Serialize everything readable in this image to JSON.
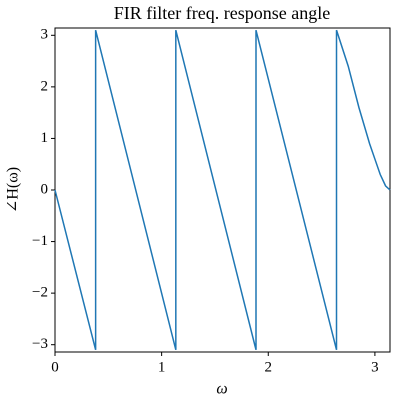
{
  "chart_data": {
    "type": "line",
    "title": "FIR filter freq. response angle",
    "x_label": "ω",
    "y_label": "∠H(ω)",
    "x": [
      0,
      0.381,
      0.381,
      1.133,
      1.133,
      1.885,
      1.885,
      2.64,
      2.64,
      2.75,
      2.85,
      2.95,
      3.0,
      3.05,
      3.1,
      3.1416
    ],
    "series": [
      {
        "color": "#1f77b4",
        "values": [
          0,
          -3.1,
          3.1,
          -3.1,
          3.1,
          -3.1,
          3.1,
          -3.1,
          3.1,
          2.4,
          1.6,
          0.9,
          0.6,
          0.3,
          0.08,
          0
        ]
      }
    ],
    "xlim": [
      0,
      3.1416
    ],
    "ylim": [
      -3.1416,
      3.1416
    ],
    "xticks": [
      0,
      1,
      2,
      3
    ],
    "yticks": [
      {
        "value": -3,
        "label": "−3"
      },
      {
        "value": -2,
        "label": "−2"
      },
      {
        "value": -1,
        "label": "−1"
      },
      0,
      1,
      2,
      3
    ],
    "grid": false
  }
}
